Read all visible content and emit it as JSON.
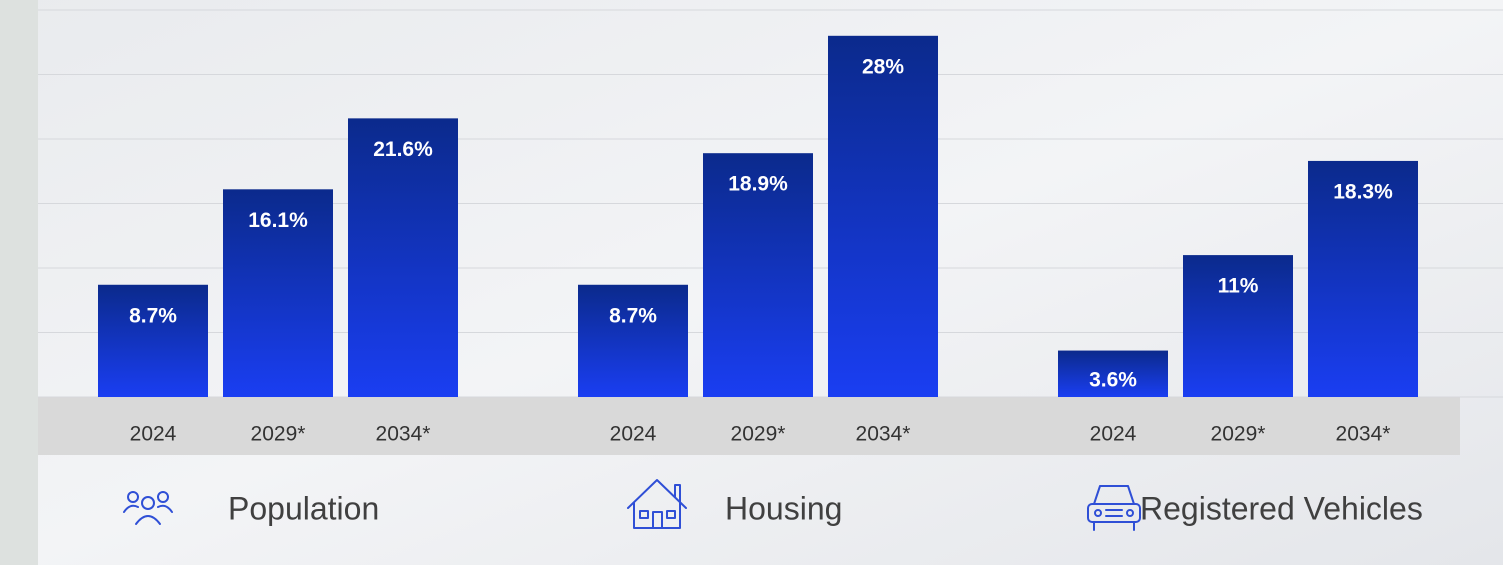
{
  "chart_data": {
    "type": "bar",
    "color": "#1a3ae6",
    "ylim": [
      0,
      30
    ],
    "yticks": [
      0,
      5,
      10,
      15,
      20,
      25,
      30
    ],
    "grid": true,
    "groups": [
      {
        "label": "Population",
        "categories": [
          "2024",
          "2029*",
          "2034*"
        ],
        "values": [
          8.7,
          16.1,
          21.6
        ],
        "value_labels": [
          "8.7%",
          "16.1%",
          "21.6%"
        ]
      },
      {
        "label": "Housing",
        "categories": [
          "2024",
          "2029*",
          "2034*"
        ],
        "values": [
          8.7,
          18.9,
          28
        ],
        "value_labels": [
          "8.7%",
          "18.9%",
          "28%"
        ]
      },
      {
        "label": "Registered Vehicles",
        "categories": [
          "2024",
          "2029*",
          "2034*"
        ],
        "values": [
          3.6,
          11,
          18.3
        ],
        "value_labels": [
          "3.6%",
          "11%",
          "18.3%"
        ]
      }
    ]
  }
}
